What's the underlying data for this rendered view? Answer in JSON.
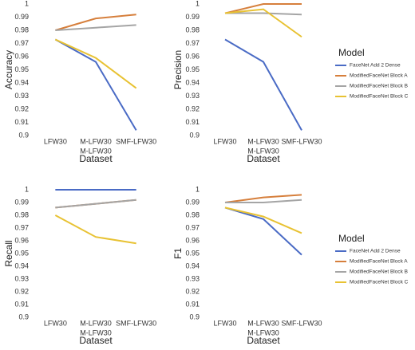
{
  "chart_data": [
    {
      "type": "line",
      "y_label": "Accuracy",
      "x_label": "Dataset",
      "categories": [
        "LFW30",
        [
          "M-LFW30",
          "M-LFW30"
        ],
        "SMF-LFW30"
      ],
      "ylim": [
        0.9,
        1
      ],
      "yticks": [
        0.9,
        0.91,
        0.92,
        0.93,
        0.94,
        0.95,
        0.96,
        0.97,
        0.98,
        0.99,
        1
      ],
      "series": [
        {
          "name": "FaceNet Add 2 Dense",
          "color": "#4a6bc5",
          "values": [
            0.973,
            0.956,
            0.904
          ]
        },
        {
          "name": "ModifiedFaceNet Block A",
          "color": "#d67f3c",
          "values": [
            0.98,
            0.989,
            0.992
          ]
        },
        {
          "name": "ModifiedFaceNet Block B",
          "color": "#a5a5a5",
          "values": [
            0.98,
            0.982,
            0.984
          ]
        },
        {
          "name": "ModifiedFaceNet Block C",
          "color": "#e8c233",
          "values": [
            0.973,
            0.959,
            0.936
          ]
        }
      ]
    },
    {
      "type": "line",
      "y_label": "Precision",
      "x_label": "Dataset",
      "legend": "right",
      "legend_title": "Model",
      "categories": [
        "LFW30",
        [
          "M-LFW30",
          "M-LFW30"
        ],
        "SMF-LFW30"
      ],
      "ylim": [
        0.9,
        1
      ],
      "yticks": [
        0.9,
        0.91,
        0.92,
        0.93,
        0.94,
        0.95,
        0.96,
        0.97,
        0.98,
        0.99,
        1
      ],
      "series": [
        {
          "name": "FaceNet Add 2 Dense",
          "color": "#4a6bc5",
          "values": [
            0.973,
            0.956,
            0.904
          ]
        },
        {
          "name": "ModifiedFaceNet Block A",
          "color": "#d67f3c",
          "values": [
            0.993,
            1,
            1
          ]
        },
        {
          "name": "ModifiedFaceNet Block B",
          "color": "#a5a5a5",
          "values": [
            0.993,
            0.993,
            0.992
          ]
        },
        {
          "name": "ModifiedFaceNet Block C",
          "color": "#e8c233",
          "values": [
            0.993,
            0.996,
            0.975
          ]
        }
      ]
    },
    {
      "type": "line",
      "y_label": "Recall",
      "x_label": "Dataset",
      "categories": [
        "LFW30",
        [
          "M-LFW30",
          "M-LFW30"
        ],
        "SMF-LFW30"
      ],
      "ylim": [
        0.9,
        1
      ],
      "yticks": [
        0.9,
        0.91,
        0.92,
        0.93,
        0.94,
        0.95,
        0.96,
        0.97,
        0.98,
        0.99,
        1
      ],
      "series": [
        {
          "name": "FaceNet Add 2 Dense",
          "color": "#4a6bc5",
          "values": [
            1,
            1,
            1
          ]
        },
        {
          "name": "ModifiedFaceNet Block A",
          "color": "#d67f3c",
          "values": [
            0.986,
            0.989,
            0.992
          ]
        },
        {
          "name": "ModifiedFaceNet Block B",
          "color": "#a5a5a5",
          "values": [
            0.986,
            0.989,
            0.992
          ]
        },
        {
          "name": "ModifiedFaceNet Block C",
          "color": "#e8c233",
          "values": [
            0.98,
            0.963,
            0.958
          ]
        }
      ]
    },
    {
      "type": "line",
      "y_label": "F1",
      "x_label": "Dataset",
      "legend": "right",
      "legend_title": "Model",
      "categories": [
        "LFW30",
        [
          "M-LFW30",
          "M-LFW30"
        ],
        "SMF-LFW30"
      ],
      "ylim": [
        0.9,
        1
      ],
      "yticks": [
        0.9,
        0.91,
        0.92,
        0.93,
        0.94,
        0.95,
        0.96,
        0.97,
        0.98,
        0.99,
        1
      ],
      "series": [
        {
          "name": "FaceNet Add 2 Dense",
          "color": "#4a6bc5",
          "values": [
            0.986,
            0.977,
            0.949
          ]
        },
        {
          "name": "ModifiedFaceNet Block A",
          "color": "#d67f3c",
          "values": [
            0.99,
            0.994,
            0.996
          ]
        },
        {
          "name": "ModifiedFaceNet Block B",
          "color": "#a5a5a5",
          "values": [
            0.99,
            0.99,
            0.992
          ]
        },
        {
          "name": "ModifiedFaceNet Block C",
          "color": "#e8c233",
          "values": [
            0.986,
            0.979,
            0.966
          ]
        }
      ]
    }
  ]
}
